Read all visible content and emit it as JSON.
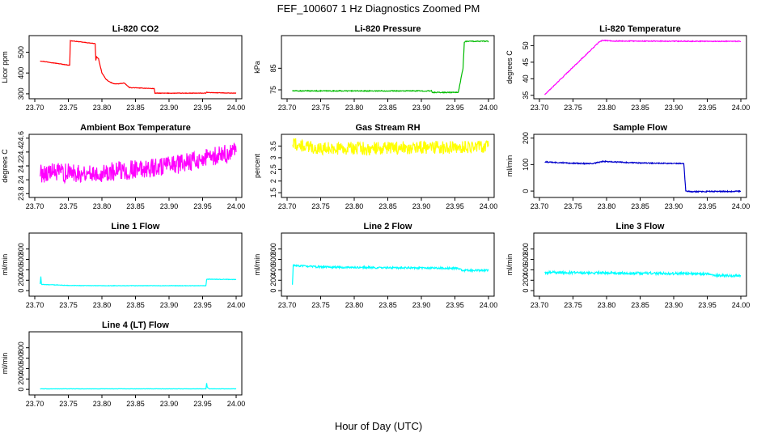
{
  "figure": {
    "title": "FEF_100607  1 Hz Diagnostics Zoomed PM",
    "xlabel": "Hour of Day (UTC)"
  },
  "chart_data": [
    {
      "type": "line",
      "title": "Li-820 CO2",
      "ylabel": "Licor ppm",
      "xlim": [
        23.7,
        24.0
      ],
      "ylim": [
        288,
        568
      ],
      "yticks": [
        300,
        400,
        500
      ],
      "color": "#ff0000",
      "noise": 1,
      "series": [
        {
          "x": [
            23.708,
            23.752,
            23.753,
            23.79,
            23.791,
            23.792,
            23.795,
            23.8,
            23.806,
            23.812,
            23.818,
            23.825,
            23.833,
            23.84,
            23.841,
            23.878,
            23.879,
            23.955,
            23.956,
            23.958,
            24.0
          ],
          "y": [
            458,
            437,
            555,
            541,
            460,
            478,
            468,
            400,
            370,
            356,
            348,
            348,
            352,
            333,
            330,
            325,
            303,
            303,
            308,
            306,
            303
          ]
        }
      ]
    },
    {
      "type": "line",
      "title": "Li-820 Pressure",
      "ylabel": "kPa",
      "xlim": [
        23.7,
        24.0
      ],
      "ylim": [
        72,
        99
      ],
      "yticks": [
        75,
        85
      ],
      "color": "#00bb00",
      "noise": 0.2,
      "series": [
        {
          "x": [
            23.708,
            23.915,
            23.916,
            23.955,
            23.962,
            23.964,
            23.966,
            23.97,
            24.0
          ],
          "y": [
            74.5,
            74.5,
            73.8,
            73.8,
            85,
            96.8,
            97.5,
            97.5,
            97.5
          ]
        }
      ]
    },
    {
      "type": "line",
      "title": "Li-820 Temperature",
      "ylabel": "degrees C",
      "xlim": [
        23.7,
        24.0
      ],
      "ylim": [
        34.7,
        52.3
      ],
      "yticks": [
        35,
        40,
        45,
        50
      ],
      "color": "#ff00ff",
      "noise": 0.12,
      "series": [
        {
          "x": [
            23.708,
            23.75,
            23.79,
            23.795,
            23.81,
            24.0
          ],
          "y": [
            35.2,
            43.5,
            51.3,
            51.6,
            51.4,
            51.3
          ]
        }
      ]
    },
    {
      "type": "line",
      "title": "Ambient Box Temperature",
      "ylabel": "degrees C",
      "xlim": [
        23.7,
        24.0
      ],
      "ylim": [
        23.78,
        24.62
      ],
      "yticks": [
        23.8,
        24.0,
        24.2,
        24.4,
        24.6
      ],
      "color": "#ff00ff",
      "noise": 0.14,
      "series": [
        {
          "x": [
            23.708,
            23.75,
            23.8,
            23.85,
            23.9,
            23.95,
            24.0
          ],
          "y": [
            24.1,
            24.1,
            24.1,
            24.15,
            24.2,
            24.3,
            24.4
          ]
        }
      ]
    },
    {
      "type": "line",
      "title": "Gas Stream RH",
      "ylabel": "percent",
      "xlim": [
        23.7,
        24.0
      ],
      "ylim": [
        1.4,
        3.9
      ],
      "yticks": [
        1.5,
        2.0,
        2.5,
        3.0,
        3.5
      ],
      "color": "#ffff00",
      "noise": 0.28,
      "series": [
        {
          "x": [
            23.708,
            23.72,
            23.75,
            23.8,
            23.85,
            23.9,
            23.95,
            24.0
          ],
          "y": [
            3.65,
            3.5,
            3.4,
            3.4,
            3.4,
            3.45,
            3.45,
            3.5
          ]
        }
      ]
    },
    {
      "type": "line",
      "title": "Sample Flow",
      "ylabel": "ml/min",
      "xlim": [
        23.7,
        24.0
      ],
      "ylim": [
        -15,
        205
      ],
      "yticks": [
        0,
        100,
        200
      ],
      "color": "#0000cc",
      "noise": 2,
      "series": [
        {
          "x": [
            23.708,
            23.76,
            23.78,
            23.795,
            23.81,
            23.85,
            23.915,
            23.916,
            23.918,
            23.925,
            24.0
          ],
          "y": [
            110,
            104,
            104,
            112,
            110,
            106,
            104,
            70,
            0,
            -2,
            -1
          ]
        }
      ]
    },
    {
      "type": "line",
      "title": "Line 1 Flow",
      "ylabel": "ml/min",
      "xlim": [
        23.7,
        24.0
      ],
      "ylim": [
        -60,
        1060
      ],
      "yticks": [
        0,
        200,
        400,
        600,
        800
      ],
      "color": "#00ffff",
      "noise": 4,
      "series": [
        {
          "x": [
            23.708,
            23.709,
            23.71,
            23.75,
            23.8,
            23.9,
            23.955,
            23.956,
            24.0
          ],
          "y": [
            130,
            270,
            120,
            100,
            95,
            95,
            95,
            220,
            215
          ]
        }
      ]
    },
    {
      "type": "line",
      "title": "Line 2 Flow",
      "ylabel": "ml/min",
      "xlim": [
        23.7,
        24.0
      ],
      "ylim": [
        -60,
        1060
      ],
      "yticks": [
        0,
        200,
        400,
        600,
        800
      ],
      "color": "#00ffff",
      "noise": 18,
      "series": [
        {
          "x": [
            23.708,
            23.709,
            23.71,
            23.713,
            23.75,
            23.8,
            23.85,
            23.9,
            23.955,
            23.96,
            24.0
          ],
          "y": [
            120,
            470,
            490,
            480,
            455,
            445,
            440,
            435,
            430,
            390,
            390
          ]
        }
      ]
    },
    {
      "type": "line",
      "title": "Line 3 Flow",
      "ylabel": "ml/min",
      "xlim": [
        23.7,
        24.0
      ],
      "ylim": [
        -60,
        1060
      ],
      "yticks": [
        0,
        200,
        400,
        600,
        800
      ],
      "color": "#00ffff",
      "noise": 24,
      "series": [
        {
          "x": [
            23.708,
            23.75,
            23.8,
            23.85,
            23.9,
            23.955,
            23.96,
            24.0
          ],
          "y": [
            350,
            345,
            340,
            335,
            330,
            325,
            290,
            285
          ]
        }
      ]
    },
    {
      "type": "line",
      "title": "Line 4 (LT) Flow",
      "ylabel": "ml/min",
      "xlim": [
        23.7,
        24.0
      ],
      "ylim": [
        -60,
        1060
      ],
      "yticks": [
        0,
        200,
        400,
        600,
        800
      ],
      "color": "#00ffff",
      "noise": 2,
      "series": [
        {
          "x": [
            23.708,
            23.9,
            23.955,
            23.956,
            23.957,
            23.96,
            24.0
          ],
          "y": [
            10,
            10,
            10,
            120,
            40,
            10,
            10
          ]
        }
      ]
    }
  ],
  "x_tick_labels": [
    "23.70",
    "23.75",
    "23.80",
    "23.85",
    "23.90",
    "23.95",
    "24.00"
  ],
  "x_tick_values": [
    23.7,
    23.75,
    23.8,
    23.85,
    23.9,
    23.95,
    24.0
  ]
}
